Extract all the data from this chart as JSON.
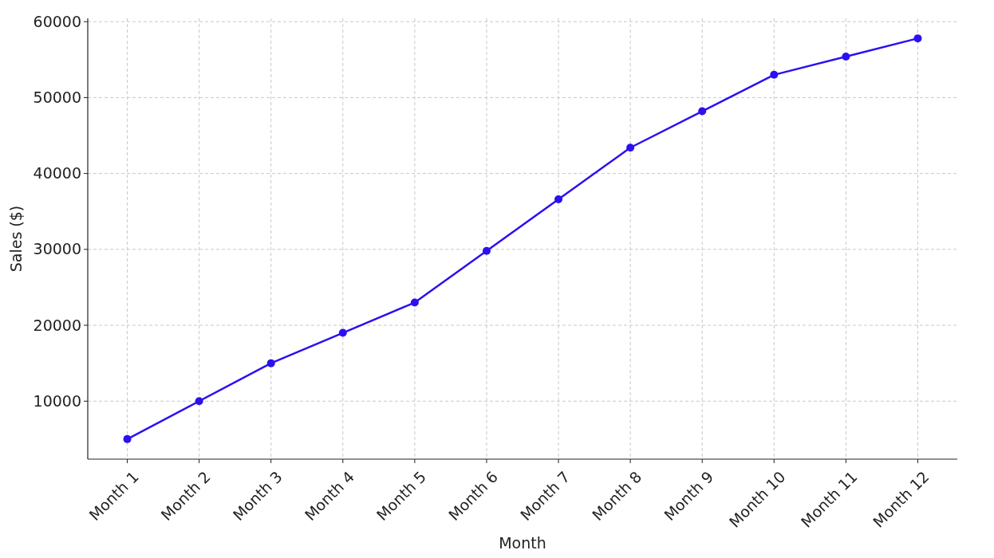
{
  "chart_data": {
    "type": "line",
    "xlabel": "Month",
    "ylabel": "Sales ($)",
    "categories": [
      "Month 1",
      "Month 2",
      "Month 3",
      "Month 4",
      "Month 5",
      "Month 6",
      "Month 7",
      "Month 8",
      "Month 9",
      "Month 10",
      "Month 11",
      "Month 12"
    ],
    "series": [
      {
        "color": "#2b10f0",
        "values": [
          5000,
          10000,
          15000,
          19000,
          23000,
          29800,
          36600,
          43400,
          48200,
          53000,
          55400,
          57800
        ]
      }
    ],
    "ylim": [
      2360,
      60440
    ],
    "yticks": [
      10000,
      20000,
      30000,
      40000,
      50000,
      60000
    ],
    "grid": true,
    "marker": "circle",
    "line_style": "solid"
  }
}
